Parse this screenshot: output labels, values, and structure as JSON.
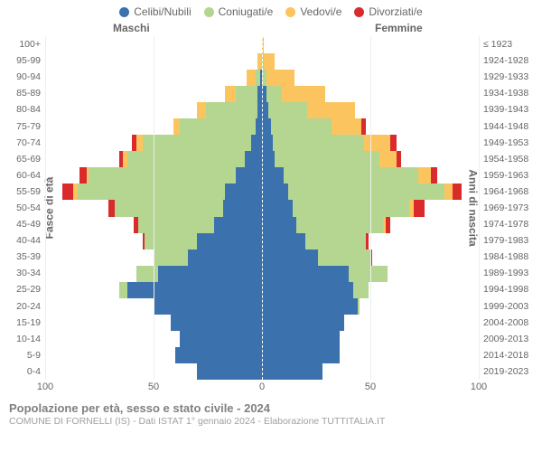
{
  "chart": {
    "type": "population-pyramid",
    "legend": [
      {
        "label": "Celibi/Nubili",
        "color": "#3b72ad"
      },
      {
        "label": "Coniugati/e",
        "color": "#b4d690"
      },
      {
        "label": "Vedovi/e",
        "color": "#fcc45f"
      },
      {
        "label": "Divorziati/e",
        "color": "#d92b2b"
      }
    ],
    "header_male": "Maschi",
    "header_female": "Femmine",
    "y_axis_left": "Fasce di età",
    "y_axis_right": "Anni di nascita",
    "x_ticks": [
      100,
      50,
      0,
      50,
      100
    ],
    "x_max": 100,
    "title": "Popolazione per età, sesso e stato civile - 2024",
    "subtitle": "COMUNE DI FORNELLI (IS) - Dati ISTAT 1° gennaio 2024 - Elaborazione TUTTITALIA.IT",
    "grid_color": "#eeeeee",
    "centerline_color": "#ffffff",
    "background_color": "#ffffff",
    "label_fontsize": 10.5,
    "legend_fontsize": 12,
    "rows": [
      {
        "age": "100+",
        "birth": "≤ 1923",
        "m": {
          "c": 0,
          "k": 0,
          "v": 0,
          "d": 0
        },
        "f": {
          "c": 0,
          "k": 0,
          "v": 1,
          "d": 0
        }
      },
      {
        "age": "95-99",
        "birth": "1924-1928",
        "m": {
          "c": 0,
          "k": 0,
          "v": 2,
          "d": 0
        },
        "f": {
          "c": 0,
          "k": 1,
          "v": 5,
          "d": 0
        }
      },
      {
        "age": "90-94",
        "birth": "1929-1933",
        "m": {
          "c": 1,
          "k": 2,
          "v": 4,
          "d": 0
        },
        "f": {
          "c": 0,
          "k": 2,
          "v": 13,
          "d": 0
        }
      },
      {
        "age": "85-89",
        "birth": "1934-1938",
        "m": {
          "c": 2,
          "k": 10,
          "v": 5,
          "d": 0
        },
        "f": {
          "c": 2,
          "k": 7,
          "v": 20,
          "d": 0
        }
      },
      {
        "age": "80-84",
        "birth": "1939-1943",
        "m": {
          "c": 2,
          "k": 24,
          "v": 4,
          "d": 0
        },
        "f": {
          "c": 3,
          "k": 18,
          "v": 22,
          "d": 0
        }
      },
      {
        "age": "75-79",
        "birth": "1944-1948",
        "m": {
          "c": 3,
          "k": 35,
          "v": 3,
          "d": 0
        },
        "f": {
          "c": 4,
          "k": 28,
          "v": 14,
          "d": 2
        }
      },
      {
        "age": "70-74",
        "birth": "1949-1953",
        "m": {
          "c": 5,
          "k": 50,
          "v": 3,
          "d": 2
        },
        "f": {
          "c": 5,
          "k": 42,
          "v": 12,
          "d": 3
        }
      },
      {
        "age": "65-69",
        "birth": "1954-1958",
        "m": {
          "c": 8,
          "k": 54,
          "v": 2,
          "d": 2
        },
        "f": {
          "c": 6,
          "k": 48,
          "v": 8,
          "d": 2
        }
      },
      {
        "age": "60-64",
        "birth": "1959-1963",
        "m": {
          "c": 12,
          "k": 68,
          "v": 1,
          "d": 3
        },
        "f": {
          "c": 10,
          "k": 62,
          "v": 6,
          "d": 3
        }
      },
      {
        "age": "55-59",
        "birth": "1964-1968",
        "m": {
          "c": 17,
          "k": 68,
          "v": 2,
          "d": 5
        },
        "f": {
          "c": 12,
          "k": 72,
          "v": 4,
          "d": 4
        }
      },
      {
        "age": "50-54",
        "birth": "1969-1973",
        "m": {
          "c": 18,
          "k": 50,
          "v": 0,
          "d": 3
        },
        "f": {
          "c": 14,
          "k": 54,
          "v": 2,
          "d": 5
        }
      },
      {
        "age": "45-49",
        "birth": "1974-1978",
        "m": {
          "c": 22,
          "k": 35,
          "v": 0,
          "d": 2
        },
        "f": {
          "c": 16,
          "k": 40,
          "v": 1,
          "d": 2
        }
      },
      {
        "age": "40-44",
        "birth": "1979-1983",
        "m": {
          "c": 30,
          "k": 24,
          "v": 0,
          "d": 1
        },
        "f": {
          "c": 20,
          "k": 28,
          "v": 0,
          "d": 1
        }
      },
      {
        "age": "35-39",
        "birth": "1984-1988",
        "m": {
          "c": 34,
          "k": 16,
          "v": 0,
          "d": 0
        },
        "f": {
          "c": 26,
          "k": 24,
          "v": 0,
          "d": 1
        }
      },
      {
        "age": "30-34",
        "birth": "1989-1993",
        "m": {
          "c": 48,
          "k": 10,
          "v": 0,
          "d": 0
        },
        "f": {
          "c": 40,
          "k": 18,
          "v": 0,
          "d": 0
        }
      },
      {
        "age": "25-29",
        "birth": "1994-1998",
        "m": {
          "c": 62,
          "k": 4,
          "v": 0,
          "d": 0
        },
        "f": {
          "c": 42,
          "k": 7,
          "v": 0,
          "d": 0
        }
      },
      {
        "age": "20-24",
        "birth": "1999-2003",
        "m": {
          "c": 50,
          "k": 0,
          "v": 0,
          "d": 0
        },
        "f": {
          "c": 44,
          "k": 1,
          "v": 0,
          "d": 0
        }
      },
      {
        "age": "15-19",
        "birth": "2004-2008",
        "m": {
          "c": 42,
          "k": 0,
          "v": 0,
          "d": 0
        },
        "f": {
          "c": 38,
          "k": 0,
          "v": 0,
          "d": 0
        }
      },
      {
        "age": "10-14",
        "birth": "2009-2013",
        "m": {
          "c": 38,
          "k": 0,
          "v": 0,
          "d": 0
        },
        "f": {
          "c": 36,
          "k": 0,
          "v": 0,
          "d": 0
        }
      },
      {
        "age": "5-9",
        "birth": "2014-2018",
        "m": {
          "c": 40,
          "k": 0,
          "v": 0,
          "d": 0
        },
        "f": {
          "c": 36,
          "k": 0,
          "v": 0,
          "d": 0
        }
      },
      {
        "age": "0-4",
        "birth": "2019-2023",
        "m": {
          "c": 30,
          "k": 0,
          "v": 0,
          "d": 0
        },
        "f": {
          "c": 28,
          "k": 0,
          "v": 0,
          "d": 0
        }
      }
    ]
  }
}
